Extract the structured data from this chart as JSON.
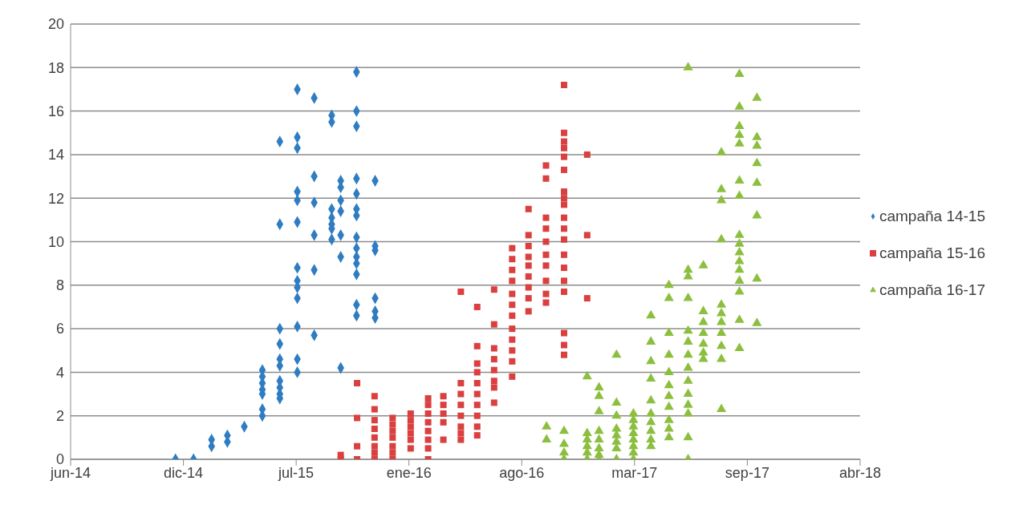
{
  "chart_data": {
    "type": "scatter",
    "xlim": [
      "2014-06-10",
      "2018-04-10"
    ],
    "xticks": [
      {
        "value": "2014-06-10",
        "label": "jun-14"
      },
      {
        "value": "2014-12-27",
        "label": "dic-14"
      },
      {
        "value": "2015-07-15",
        "label": "jul-15"
      },
      {
        "value": "2016-01-31",
        "label": "ene-16"
      },
      {
        "value": "2016-08-18",
        "label": "ago-16"
      },
      {
        "value": "2017-03-06",
        "label": "mar-17"
      },
      {
        "value": "2017-09-22",
        "label": "sep-17"
      },
      {
        "value": "2018-04-10",
        "label": "abr-18"
      }
    ],
    "ylim": [
      0,
      20
    ],
    "yticks": [
      0,
      2,
      4,
      6,
      8,
      10,
      12,
      14,
      16,
      18,
      20
    ],
    "grid": "y",
    "legend": "right",
    "series": [
      {
        "name": "campaña 14-15",
        "color": "#2e7dc2",
        "marker": "diamond",
        "x": [
          "2014-12-13",
          "2015-01-14",
          "2015-02-15",
          "2015-02-15",
          "2015-03-15",
          "2015-03-15",
          "2015-04-14",
          "2015-05-16",
          "2015-05-16",
          "2015-05-16",
          "2015-05-16",
          "2015-05-16",
          "2015-05-16",
          "2015-05-16",
          "2015-06-16",
          "2015-06-16",
          "2015-06-16",
          "2015-06-16",
          "2015-06-16",
          "2015-06-16",
          "2015-06-16",
          "2015-06-16",
          "2015-06-16",
          "2015-06-16",
          "2015-07-17",
          "2015-07-17",
          "2015-07-17",
          "2015-07-17",
          "2015-07-17",
          "2015-07-17",
          "2015-07-17",
          "2015-07-17",
          "2015-07-17",
          "2015-07-17",
          "2015-07-17",
          "2015-07-17",
          "2015-07-17",
          "2015-08-16",
          "2015-08-16",
          "2015-08-16",
          "2015-08-16",
          "2015-08-16",
          "2015-08-16",
          "2015-09-16",
          "2015-09-16",
          "2015-09-16",
          "2015-09-16",
          "2015-09-16",
          "2015-09-16",
          "2015-09-16",
          "2015-10-02",
          "2015-10-02",
          "2015-10-02",
          "2015-10-02",
          "2015-10-02",
          "2015-10-02",
          "2015-10-02",
          "2015-10-30",
          "2015-10-30",
          "2015-10-30",
          "2015-10-30",
          "2015-10-30",
          "2015-10-30",
          "2015-10-30",
          "2015-10-30",
          "2015-10-30",
          "2015-10-30",
          "2015-10-30",
          "2015-10-30",
          "2015-10-30",
          "2015-10-30",
          "2015-12-02",
          "2015-12-02",
          "2015-12-02",
          "2015-12-02",
          "2015-12-02",
          "2015-12-02"
        ],
        "values": [
          0,
          0,
          0.9,
          0.6,
          1.1,
          0.8,
          1.5,
          4.1,
          3.8,
          3.5,
          3.2,
          3.0,
          2.3,
          2.0,
          14.6,
          10.8,
          6.0,
          5.3,
          4.6,
          4.3,
          3.6,
          3.3,
          3.0,
          2.8,
          17.0,
          14.8,
          14.3,
          12.3,
          11.9,
          10.9,
          8.8,
          8.2,
          7.9,
          7.4,
          6.1,
          4.6,
          4.0,
          16.6,
          13.0,
          11.8,
          10.3,
          8.7,
          5.7,
          15.8,
          15.5,
          11.5,
          11.1,
          10.8,
          10.6,
          10.1,
          12.8,
          12.5,
          11.9,
          11.4,
          10.3,
          9.3,
          4.2,
          17.8,
          16.0,
          15.3,
          12.9,
          12.2,
          11.5,
          11.2,
          10.2,
          9.7,
          9.3,
          9.0,
          8.5,
          7.1,
          6.6,
          12.8,
          9.8,
          9.6,
          7.4,
          6.8,
          6.5
        ]
      },
      {
        "name": "campaña 15-16",
        "color": "#d9403f",
        "marker": "square",
        "x": [
          "2015-10-02",
          "2015-10-02",
          "2015-10-31",
          "2015-10-31",
          "2015-10-31",
          "2015-10-31",
          "2015-12-01",
          "2015-12-01",
          "2015-12-01",
          "2015-12-01",
          "2015-12-01",
          "2015-12-01",
          "2015-12-01",
          "2015-12-01",
          "2016-01-02",
          "2016-01-02",
          "2016-01-02",
          "2016-01-02",
          "2016-01-02",
          "2016-01-02",
          "2016-01-02",
          "2016-02-03",
          "2016-02-03",
          "2016-02-03",
          "2016-02-03",
          "2016-02-03",
          "2016-02-03",
          "2016-03-05",
          "2016-03-05",
          "2016-03-05",
          "2016-03-05",
          "2016-03-05",
          "2016-03-05",
          "2016-03-05",
          "2016-03-05",
          "2016-04-01",
          "2016-04-01",
          "2016-04-01",
          "2016-04-01",
          "2016-04-01",
          "2016-05-02",
          "2016-05-02",
          "2016-05-02",
          "2016-05-02",
          "2016-05-02",
          "2016-05-02",
          "2016-05-02",
          "2016-05-02",
          "2016-05-31",
          "2016-05-31",
          "2016-05-31",
          "2016-05-31",
          "2016-05-31",
          "2016-05-31",
          "2016-05-31",
          "2016-05-31",
          "2016-05-31",
          "2016-05-31",
          "2016-06-30",
          "2016-06-30",
          "2016-06-30",
          "2016-06-30",
          "2016-06-30",
          "2016-06-30",
          "2016-06-30",
          "2016-06-30",
          "2016-08-01",
          "2016-08-01",
          "2016-08-01",
          "2016-08-01",
          "2016-08-01",
          "2016-08-01",
          "2016-08-01",
          "2016-08-01",
          "2016-08-01",
          "2016-08-01",
          "2016-08-01",
          "2016-08-01",
          "2016-08-30",
          "2016-08-30",
          "2016-08-30",
          "2016-08-30",
          "2016-08-30",
          "2016-08-30",
          "2016-08-30",
          "2016-08-30",
          "2016-08-30",
          "2016-09-30",
          "2016-09-30",
          "2016-09-30",
          "2016-09-30",
          "2016-09-30",
          "2016-09-30",
          "2016-09-30",
          "2016-09-30",
          "2016-09-30",
          "2016-09-30",
          "2016-11-01",
          "2016-11-01",
          "2016-11-01",
          "2016-11-01",
          "2016-11-01",
          "2016-11-01",
          "2016-11-01",
          "2016-11-01",
          "2016-11-01",
          "2016-11-01",
          "2016-11-01",
          "2016-11-01",
          "2016-11-01",
          "2016-11-01",
          "2016-11-01",
          "2016-11-01",
          "2016-11-01",
          "2016-11-01",
          "2016-11-01",
          "2016-12-12",
          "2016-12-12",
          "2016-12-12"
        ],
        "values": [
          0.2,
          0,
          3.5,
          1.9,
          0.6,
          0,
          2.9,
          2.3,
          1.8,
          1.4,
          1.0,
          0.6,
          0.3,
          0,
          1.9,
          1.6,
          1.3,
          1.0,
          0.6,
          0.3,
          0,
          2.1,
          1.8,
          1.5,
          1.2,
          0.9,
          0.5,
          2.8,
          2.5,
          2.1,
          1.7,
          1.3,
          0.9,
          0.5,
          0,
          2.9,
          2.5,
          2.1,
          1.7,
          0.9,
          7.7,
          3.5,
          3.0,
          2.5,
          2.0,
          1.5,
          1.2,
          0.9,
          7.0,
          5.2,
          4.4,
          4.0,
          3.5,
          3.0,
          2.5,
          2.0,
          1.5,
          1.1,
          7.8,
          6.2,
          5.1,
          4.6,
          4.1,
          3.6,
          3.3,
          2.6,
          9.7,
          9.2,
          8.7,
          8.2,
          7.6,
          7.1,
          6.6,
          6.0,
          5.5,
          5.0,
          4.5,
          3.8,
          11.5,
          10.3,
          9.8,
          9.3,
          8.9,
          8.4,
          7.9,
          7.4,
          6.8,
          13.5,
          12.9,
          11.1,
          10.6,
          10.0,
          9.4,
          8.9,
          8.2,
          7.6,
          7.2,
          17.2,
          15.0,
          14.6,
          14.3,
          13.9,
          13.3,
          12.3,
          12.0,
          11.7,
          11.1,
          10.6,
          10.1,
          9.4,
          8.8,
          8.2,
          7.7,
          5.8,
          5.25,
          4.8,
          14.0,
          10.3,
          7.4
        ]
      },
      {
        "name": "campaña 16-17",
        "color": "#8cbf3f",
        "marker": "triangle",
        "x": [
          "2016-10-01",
          "2016-10-01",
          "2016-11-01",
          "2016-11-01",
          "2016-11-01",
          "2016-11-01",
          "2016-12-12",
          "2016-12-12",
          "2016-12-12",
          "2016-12-12",
          "2016-12-12",
          "2016-12-12",
          "2017-01-02",
          "2017-01-02",
          "2017-01-02",
          "2017-01-02",
          "2017-01-02",
          "2017-01-02",
          "2017-01-02",
          "2017-01-02",
          "2017-02-02",
          "2017-02-02",
          "2017-02-02",
          "2017-02-02",
          "2017-02-02",
          "2017-02-02",
          "2017-02-02",
          "2017-02-02",
          "2017-03-04",
          "2017-03-04",
          "2017-03-04",
          "2017-03-04",
          "2017-03-04",
          "2017-03-04",
          "2017-03-04",
          "2017-03-04",
          "2017-04-04",
          "2017-04-04",
          "2017-04-04",
          "2017-04-04",
          "2017-04-04",
          "2017-04-04",
          "2017-04-04",
          "2017-04-04",
          "2017-04-04",
          "2017-04-04",
          "2017-05-06",
          "2017-05-06",
          "2017-05-06",
          "2017-05-06",
          "2017-05-06",
          "2017-05-06",
          "2017-05-06",
          "2017-05-06",
          "2017-05-06",
          "2017-05-06",
          "2017-05-06",
          "2017-06-09",
          "2017-06-09",
          "2017-06-09",
          "2017-06-09",
          "2017-06-09",
          "2017-06-09",
          "2017-06-09",
          "2017-06-09",
          "2017-06-09",
          "2017-06-09",
          "2017-06-09",
          "2017-06-09",
          "2017-06-09",
          "2017-06-09",
          "2017-07-06",
          "2017-07-06",
          "2017-07-06",
          "2017-07-06",
          "2017-07-06",
          "2017-07-06",
          "2017-07-06",
          "2017-08-07",
          "2017-08-07",
          "2017-08-07",
          "2017-08-07",
          "2017-08-07",
          "2017-08-07",
          "2017-08-07",
          "2017-08-07",
          "2017-08-07",
          "2017-08-07",
          "2017-08-07",
          "2017-09-08",
          "2017-09-08",
          "2017-09-08",
          "2017-09-08",
          "2017-09-08",
          "2017-09-08",
          "2017-09-08",
          "2017-09-08",
          "2017-09-08",
          "2017-09-08",
          "2017-09-08",
          "2017-09-08",
          "2017-09-08",
          "2017-09-08",
          "2017-09-08",
          "2017-09-08",
          "2017-10-09",
          "2017-10-09",
          "2017-10-09",
          "2017-10-09",
          "2017-10-09",
          "2017-10-09",
          "2017-10-09",
          "2017-10-09"
        ],
        "values": [
          1.5,
          0.9,
          1.3,
          0.7,
          0.3,
          0,
          3.8,
          1.2,
          0.9,
          0.6,
          0.3,
          0,
          3.3,
          2.9,
          2.2,
          1.3,
          0.9,
          0.5,
          0.2,
          0,
          4.8,
          2.6,
          2.0,
          1.4,
          1.1,
          0.8,
          0.5,
          0,
          2.1,
          1.8,
          1.5,
          1.2,
          0.9,
          0.6,
          0.3,
          0,
          6.6,
          5.4,
          4.5,
          3.7,
          2.7,
          2.1,
          1.7,
          1.3,
          0.9,
          0.6,
          8.0,
          7.4,
          5.8,
          4.8,
          4.0,
          3.4,
          2.9,
          2.4,
          1.8,
          1.4,
          1.0,
          18.0,
          8.7,
          8.4,
          7.4,
          5.9,
          5.4,
          4.8,
          4.2,
          3.6,
          3.0,
          2.5,
          2.1,
          1.0,
          0,
          8.9,
          6.8,
          6.3,
          5.8,
          5.3,
          4.9,
          4.6,
          14.1,
          12.4,
          11.9,
          10.1,
          7.1,
          6.7,
          6.3,
          5.8,
          5.2,
          4.6,
          2.3,
          17.7,
          16.2,
          15.3,
          14.9,
          14.5,
          12.8,
          12.1,
          10.3,
          9.9,
          9.5,
          9.1,
          8.7,
          8.2,
          7.7,
          6.4,
          5.1,
          16.6,
          14.8,
          14.4,
          13.6,
          12.7,
          11.2,
          8.3,
          6.25
        ]
      }
    ]
  }
}
